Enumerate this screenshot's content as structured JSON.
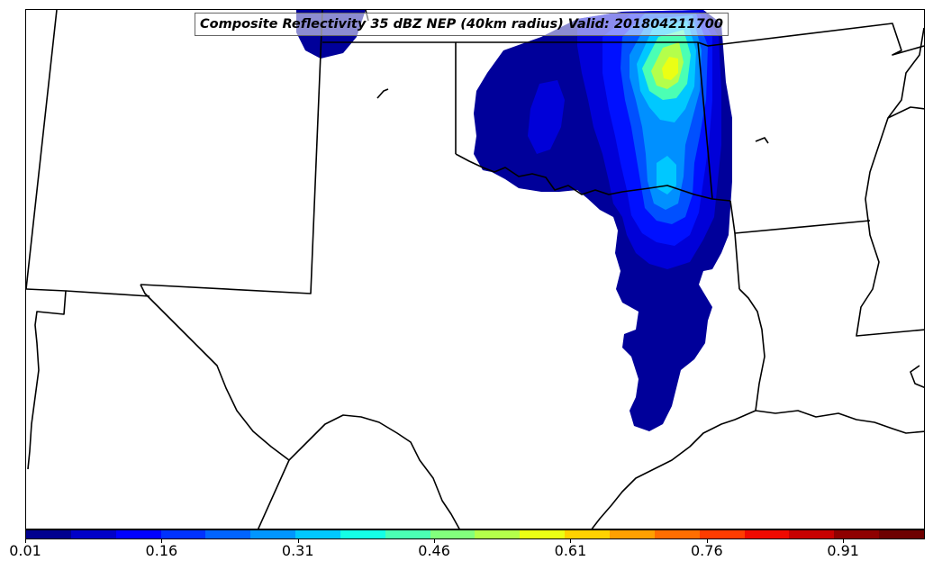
{
  "title": "Composite Reflectivity 35 dBZ NEP (40km radius) Valid: 201804211700",
  "colorbar": {
    "min": 0.01,
    "max": 1.0,
    "tick_labels": [
      "0.01",
      "0.16",
      "0.31",
      "0.46",
      "0.61",
      "0.76",
      "0.91"
    ],
    "colors": [
      "#00008f",
      "#0000c8",
      "#0000ff",
      "#0032ff",
      "#0064ff",
      "#0096ff",
      "#00c8ff",
      "#14ffe6",
      "#4bffb4",
      "#82ff7d",
      "#b4ff4b",
      "#ebff14",
      "#ffd200",
      "#ffa000",
      "#ff6e00",
      "#ff3c00",
      "#f00a00",
      "#c80000",
      "#8f0000",
      "#6e0000"
    ]
  },
  "map": {
    "region": "south-central US",
    "features": [
      "state-boundaries",
      "coastline",
      "probability-contours"
    ]
  }
}
